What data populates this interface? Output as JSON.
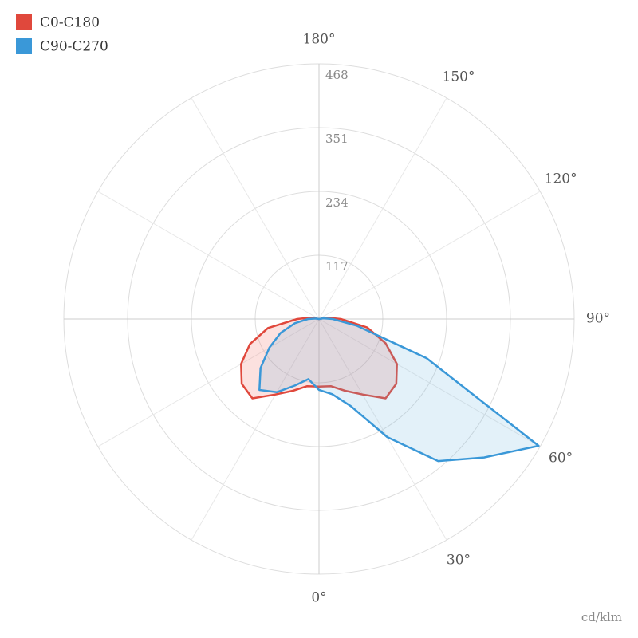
{
  "chart_data": {
    "type": "polar",
    "x": [
      -180,
      -170,
      -160,
      -150,
      -140,
      -130,
      -120,
      -110,
      -100,
      -90,
      -80,
      -70,
      -60,
      -50,
      -40,
      -30,
      -20,
      -10,
      0,
      10,
      20,
      30,
      40,
      50,
      60,
      70,
      80,
      90,
      100,
      110,
      120,
      130,
      140,
      150,
      160,
      170,
      180
    ],
    "series": [
      {
        "name": "C0-C180",
        "color": "#e0483c",
        "fill": "rgba(240,120,110,0.22)",
        "values": [
          0,
          0,
          0,
          0,
          0,
          0,
          0,
          0,
          15,
          40,
          95,
          135,
          165,
          185,
          190,
          160,
          140,
          125,
          124,
          125,
          140,
          160,
          190,
          185,
          165,
          130,
          90,
          40,
          15,
          0,
          0,
          0,
          0,
          0,
          0,
          0,
          0
        ]
      },
      {
        "name": "C90-C270",
        "color": "#3a98d8",
        "fill": "rgba(100,180,220,0.18)",
        "values": [
          0,
          0,
          0,
          0,
          0,
          0,
          0,
          0,
          5,
          20,
          45,
          75,
          105,
          140,
          170,
          155,
          130,
          112,
          130,
          140,
          170,
          250,
          340,
          395,
          465,
          210,
          70,
          25,
          8,
          0,
          0,
          0,
          0,
          0,
          0,
          0,
          0
        ]
      }
    ],
    "rlim": [
      0,
      468
    ],
    "rticks": [
      117,
      234,
      351,
      468
    ],
    "xticks": [
      {
        "value": 0,
        "label": "0°"
      },
      {
        "value": 30,
        "label": "30°"
      },
      {
        "value": 60,
        "label": "60°"
      },
      {
        "value": 90,
        "label": "90°"
      },
      {
        "value": 120,
        "label": "120°"
      },
      {
        "value": 150,
        "label": "150°"
      },
      {
        "value": 180,
        "label": "180°"
      }
    ],
    "unit": "cd/klm",
    "grid": true
  }
}
